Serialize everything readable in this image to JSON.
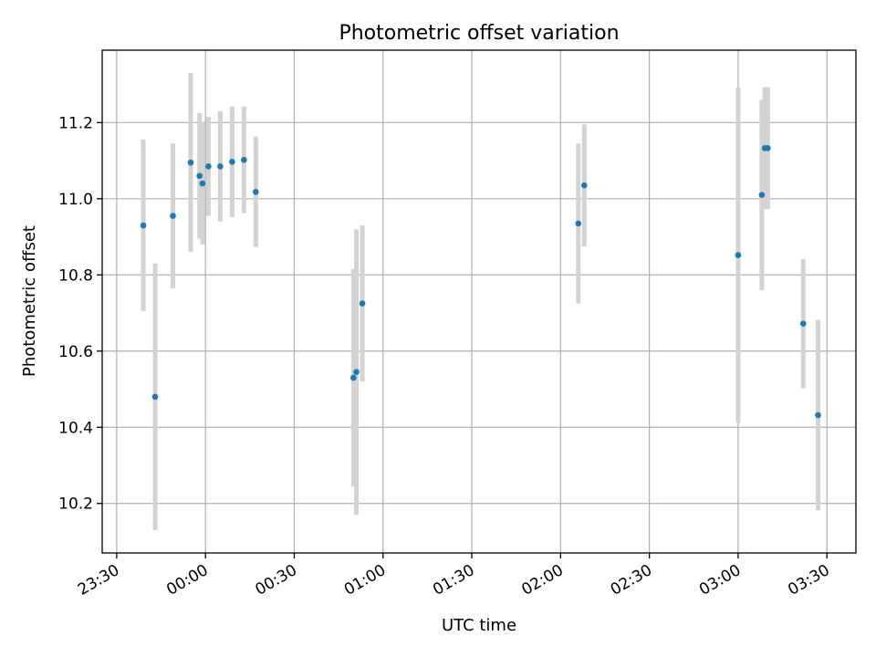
{
  "chart_data": {
    "type": "scatter",
    "title": "Photometric offset variation",
    "xlabel": "UTC time",
    "ylabel": "Photometric offset",
    "xlim": [
      "23:30",
      "03:30"
    ],
    "ylim": [
      10.07,
      11.39
    ],
    "grid": true,
    "x_ticks": [
      "23:30",
      "00:00",
      "00:30",
      "01:00",
      "01:30",
      "02:00",
      "02:30",
      "03:00",
      "03:30"
    ],
    "y_ticks": [
      "10.2",
      "10.4",
      "10.6",
      "10.8",
      "11.0",
      "11.2"
    ],
    "colors": {
      "points": "#1f77b4",
      "error_bars": "#d3d3d3"
    },
    "points": [
      {
        "time": "23:39",
        "value": 10.93,
        "error": 0.225
      },
      {
        "time": "23:43",
        "value": 10.48,
        "error": 0.35
      },
      {
        "time": "23:49",
        "value": 10.955,
        "error": 0.19
      },
      {
        "time": "23:55",
        "value": 11.095,
        "error": 0.235
      },
      {
        "time": "23:58",
        "value": 11.06,
        "error": 0.165
      },
      {
        "time": "23:59",
        "value": 11.04,
        "error": 0.16
      },
      {
        "time": "00:01",
        "value": 11.085,
        "error": 0.13
      },
      {
        "time": "00:05",
        "value": 11.085,
        "error": 0.145
      },
      {
        "time": "00:09",
        "value": 11.097,
        "error": 0.145
      },
      {
        "time": "00:13",
        "value": 11.102,
        "error": 0.14
      },
      {
        "time": "00:17",
        "value": 11.018,
        "error": 0.145
      },
      {
        "time": "00:50",
        "value": 10.53,
        "error": 0.285
      },
      {
        "time": "00:51",
        "value": 10.545,
        "error": 0.375
      },
      {
        "time": "00:53",
        "value": 10.725,
        "error": 0.205
      },
      {
        "time": "02:06",
        "value": 10.935,
        "error": 0.21
      },
      {
        "time": "02:08",
        "value": 11.035,
        "error": 0.16
      },
      {
        "time": "03:00",
        "value": 10.852,
        "error": 0.44
      },
      {
        "time": "03:08",
        "value": 11.01,
        "error": 0.25
      },
      {
        "time": "03:09",
        "value": 11.133,
        "error": 0.16
      },
      {
        "time": "03:10",
        "value": 11.133,
        "error": 0.16
      },
      {
        "time": "03:22",
        "value": 10.672,
        "error": 0.17
      },
      {
        "time": "03:27",
        "value": 10.432,
        "error": 0.25
      }
    ]
  }
}
